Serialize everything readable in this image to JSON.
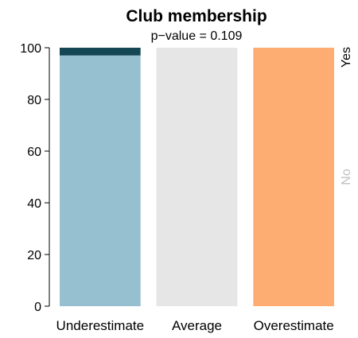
{
  "chart_data": {
    "type": "bar",
    "stacked": true,
    "title": "Club membership",
    "subtitle": "p−value =  0.109",
    "categories": [
      "Underestimate",
      "Average",
      "Overestimate"
    ],
    "ylim": [
      0,
      100
    ],
    "yticks": [
      0,
      20,
      40,
      60,
      80,
      100
    ],
    "series": [
      {
        "name": "No",
        "values": [
          97,
          100,
          100
        ],
        "colors": [
          "#96c0cf",
          "#e6e6e6",
          "#fdad72"
        ]
      },
      {
        "name": "Yes",
        "values": [
          3,
          0,
          0
        ],
        "colors": [
          "#154653",
          "#8a8a8a",
          "#c15c10"
        ]
      }
    ],
    "side_labels": [
      {
        "text": "Yes",
        "color": "#000000"
      },
      {
        "text": "No",
        "color": "#c0c0c0"
      }
    ],
    "grid": false,
    "legend": "right margin"
  }
}
